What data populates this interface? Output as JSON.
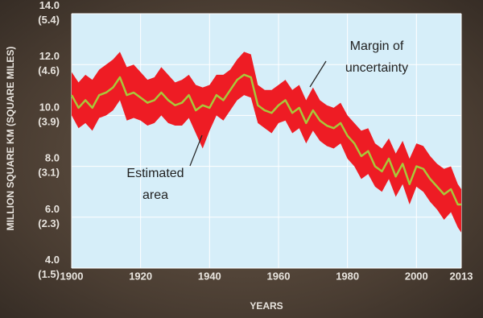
{
  "chart_data": {
    "type": "band-line",
    "y_label": "MILLION SQUARE KM (SQUARE MILES)",
    "x_label": "YEARS",
    "x": [
      1900,
      1902,
      1904,
      1906,
      1908,
      1910,
      1912,
      1914,
      1916,
      1918,
      1920,
      1922,
      1924,
      1926,
      1928,
      1930,
      1932,
      1934,
      1936,
      1938,
      1940,
      1942,
      1944,
      1946,
      1948,
      1950,
      1952,
      1954,
      1956,
      1958,
      1960,
      1962,
      1964,
      1966,
      1968,
      1970,
      1972,
      1974,
      1976,
      1978,
      1980,
      1982,
      1984,
      1986,
      1988,
      1990,
      1992,
      1994,
      1996,
      1998,
      2000,
      2002,
      2004,
      2006,
      2008,
      2010,
      2012,
      2013
    ],
    "series": [
      {
        "name": "Estimated area",
        "color": "#a8c83a",
        "values": [
          10.8,
          10.3,
          10.6,
          10.3,
          10.8,
          10.9,
          11.1,
          11.5,
          10.8,
          10.9,
          10.7,
          10.5,
          10.6,
          10.9,
          10.6,
          10.4,
          10.5,
          10.8,
          10.2,
          10.4,
          10.3,
          10.8,
          10.6,
          11.0,
          11.4,
          11.6,
          11.5,
          10.4,
          10.2,
          10.1,
          10.4,
          10.6,
          10.1,
          10.3,
          9.7,
          10.2,
          9.8,
          9.6,
          9.5,
          9.7,
          9.2,
          8.9,
          8.4,
          8.6,
          8.0,
          7.8,
          8.3,
          7.6,
          8.1,
          7.3,
          8.0,
          7.9,
          7.5,
          7.2,
          6.9,
          7.1,
          6.5,
          6.5
        ]
      }
    ],
    "band": {
      "name": "Margin of uncertainty",
      "color": "#ee1c24",
      "upper": [
        11.7,
        11.3,
        11.6,
        11.4,
        11.8,
        12.0,
        12.2,
        12.5,
        11.9,
        12.0,
        11.7,
        11.4,
        11.5,
        11.9,
        11.6,
        11.3,
        11.4,
        11.6,
        11.2,
        11.1,
        11.2,
        11.6,
        11.6,
        11.8,
        12.2,
        12.5,
        12.4,
        11.2,
        11.0,
        11.0,
        11.2,
        11.4,
        11.0,
        11.2,
        10.6,
        11.1,
        10.6,
        10.4,
        10.3,
        10.5,
        10.0,
        9.7,
        9.4,
        9.5,
        8.9,
        8.7,
        9.1,
        8.5,
        9.0,
        8.3,
        8.9,
        8.8,
        8.4,
        8.1,
        7.9,
        8.0,
        7.3,
        7.1
      ],
      "lower": [
        10.0,
        9.5,
        9.7,
        9.4,
        9.9,
        10.0,
        10.2,
        10.6,
        9.8,
        9.9,
        9.8,
        9.6,
        9.7,
        10.0,
        9.7,
        9.6,
        9.6,
        9.9,
        9.3,
        8.7,
        9.4,
        10.0,
        9.8,
        10.2,
        10.6,
        10.8,
        10.7,
        9.7,
        9.5,
        9.3,
        9.7,
        9.8,
        9.3,
        9.5,
        8.9,
        9.4,
        9.0,
        8.8,
        8.7,
        8.9,
        8.3,
        8.0,
        7.5,
        7.7,
        7.2,
        7.0,
        7.5,
        6.8,
        7.3,
        6.5,
        7.2,
        7.0,
        6.6,
        6.3,
        5.9,
        6.2,
        5.6,
        5.4
      ]
    },
    "xlim": [
      1900,
      2013
    ],
    "xticks": [
      1900,
      1920,
      1940,
      1960,
      1980,
      2000,
      2013
    ],
    "ylim": [
      4,
      14
    ],
    "yticks": [
      {
        "value": 4,
        "label": "4.0 (1.5)"
      },
      {
        "value": 6,
        "label": "6.0 (2.3)"
      },
      {
        "value": 8,
        "label": "8.0 (3.1)"
      },
      {
        "value": 10,
        "label": "10.0 (3.9)"
      },
      {
        "value": 12,
        "label": "12.0 (4.6)"
      },
      {
        "value": 14,
        "label": "14.0 (5.4)"
      }
    ],
    "grid": true
  }
}
